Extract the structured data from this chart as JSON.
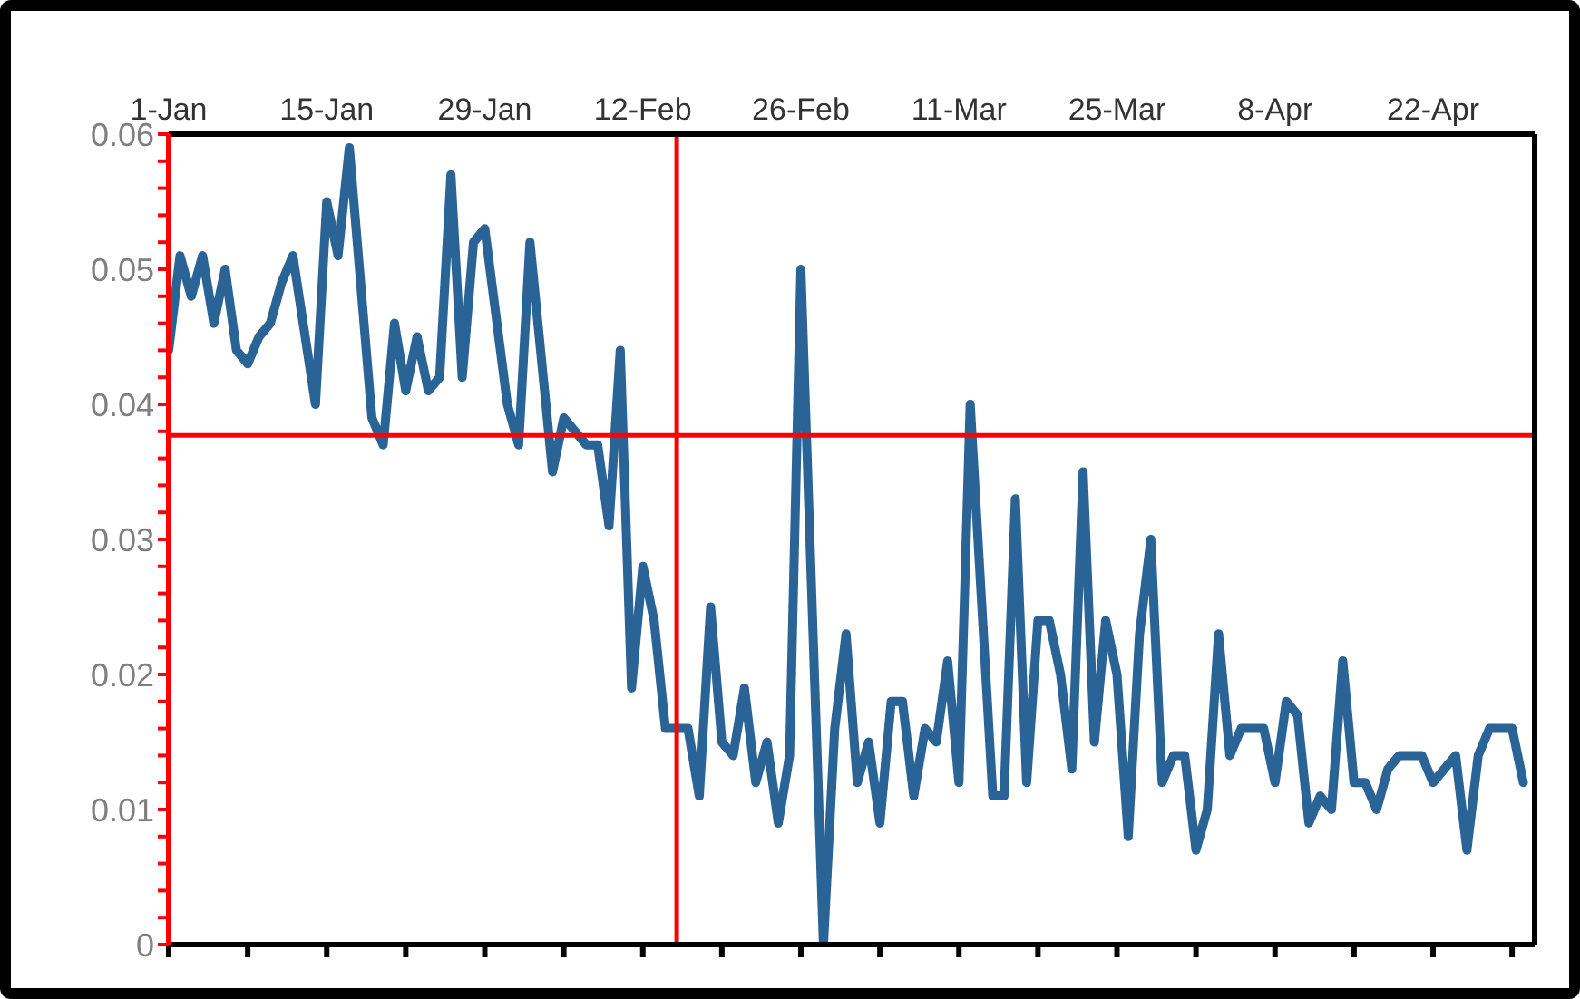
{
  "chart_data": {
    "type": "line",
    "x": [
      "--01-01",
      "--01-02",
      "--01-03",
      "--01-04",
      "--01-05",
      "--01-06",
      "--01-07",
      "--01-08",
      "--01-09",
      "--01-10",
      "--01-11",
      "--01-12",
      "--01-14",
      "--01-15",
      "--01-16",
      "--01-17",
      "--01-19",
      "--01-20",
      "--01-21",
      "--01-22",
      "--01-23",
      "--01-24",
      "--01-25",
      "--01-26",
      "--01-27",
      "--01-28",
      "--01-29",
      "--01-31",
      "--02-01",
      "--02-02",
      "--02-04",
      "--02-05",
      "--02-07",
      "--02-08",
      "--02-09",
      "--02-10",
      "--02-11",
      "--02-12",
      "--02-13",
      "--02-14",
      "--02-15",
      "--02-16",
      "--02-17",
      "--02-18",
      "--02-19",
      "--02-20",
      "--02-21",
      "--02-22",
      "--02-23",
      "--02-24",
      "--02-25",
      "--02-26",
      "--02-28",
      "--02-29",
      "--03-01",
      "--03-02",
      "--03-03",
      "--03-04",
      "--03-05",
      "--03-06",
      "--03-07",
      "--03-08",
      "--03-09",
      "--03-10",
      "--03-11",
      "--03-12",
      "--03-14",
      "--03-15",
      "--03-16",
      "--03-17",
      "--03-18",
      "--03-19",
      "--03-20",
      "--03-21",
      "--03-22",
      "--03-23",
      "--03-24",
      "--03-25",
      "--03-26",
      "--03-27",
      "--03-28",
      "--03-29",
      "--03-30",
      "--03-31",
      "--04-01",
      "--04-02",
      "--04-03",
      "--04-04",
      "--04-05",
      "--04-06",
      "--04-07",
      "--04-08",
      "--04-09",
      "--04-10",
      "--04-11",
      "--04-12",
      "--04-13",
      "--04-14",
      "--04-15",
      "--04-16",
      "--04-17",
      "--04-18",
      "--04-19",
      "--04-20",
      "--04-21",
      "--04-22",
      "--04-23",
      "--04-24",
      "--04-25",
      "--04-26",
      "--04-27",
      "--04-28",
      "--04-29",
      "--04-30"
    ],
    "series": [
      {
        "color": "#2a6496",
        "values": [
          0.044,
          0.051,
          0.048,
          0.051,
          0.046,
          0.05,
          0.044,
          0.043,
          0.045,
          0.046,
          0.049,
          0.051,
          0.04,
          0.055,
          0.051,
          0.059,
          0.039,
          0.037,
          0.046,
          0.041,
          0.045,
          0.041,
          0.042,
          0.057,
          0.042,
          0.052,
          0.053,
          0.04,
          0.037,
          0.052,
          0.035,
          0.039,
          0.037,
          0.037,
          0.031,
          0.044,
          0.019,
          0.028,
          0.024,
          0.016,
          0.016,
          0.016,
          0.011,
          0.025,
          0.015,
          0.014,
          0.019,
          0.012,
          0.015,
          0.009,
          0.014,
          0.05,
          0,
          0.016,
          0.023,
          0.012,
          0.015,
          0.009,
          0.018,
          0.018,
          0.011,
          0.016,
          0.015,
          0.021,
          0.012,
          0.04,
          0.011,
          0.011,
          0.033,
          0.012,
          0.024,
          0.024,
          0.02,
          0.013,
          0.035,
          0.015,
          0.024,
          0.02,
          0.008,
          0.023,
          0.03,
          0.012,
          0.014,
          0.014,
          0.007,
          0.01,
          0.023,
          0.014,
          0.016,
          0.016,
          0.016,
          0.012,
          0.018,
          0.017,
          0.009,
          0.011,
          0.01,
          0.021,
          0.012,
          0.012,
          0.01,
          0.013,
          0.014,
          0.014,
          0.014,
          0.012,
          0.013,
          0.014,
          0.007,
          0.014,
          0.016,
          0.016,
          0.016,
          0.012
        ]
      }
    ],
    "xlim": [
      "--01-01",
      "--05-01"
    ],
    "xticks": [
      {
        "value": "--01-01",
        "label": "1-Jan"
      },
      {
        "value": "--01-08",
        "label": null
      },
      {
        "value": "--01-15",
        "label": "15-Jan"
      },
      {
        "value": "--01-22",
        "label": null
      },
      {
        "value": "--01-29",
        "label": "29-Jan"
      },
      {
        "value": "--02-05",
        "label": null
      },
      {
        "value": "--02-12",
        "label": "12-Feb"
      },
      {
        "value": "--02-19",
        "label": null
      },
      {
        "value": "--02-26",
        "label": "26-Feb"
      },
      {
        "value": "--03-04",
        "label": null
      },
      {
        "value": "--03-11",
        "label": "11-Mar"
      },
      {
        "value": "--03-18",
        "label": null
      },
      {
        "value": "--03-25",
        "label": "25-Mar"
      },
      {
        "value": "--04-01",
        "label": null
      },
      {
        "value": "--04-08",
        "label": "8-Apr"
      },
      {
        "value": "--04-15",
        "label": null
      },
      {
        "value": "--04-22",
        "label": "22-Apr"
      },
      {
        "value": "--04-29",
        "label": null
      }
    ],
    "ylim": [
      0,
      0.06
    ],
    "yticks": [
      0,
      {
        "value": 0.002,
        "label": null
      },
      {
        "value": 0.004,
        "label": null
      },
      {
        "value": 0.006,
        "label": null
      },
      {
        "value": 0.008,
        "label": null
      },
      0.01,
      {
        "value": 0.012,
        "label": null
      },
      {
        "value": 0.014,
        "label": null
      },
      {
        "value": 0.016,
        "label": null
      },
      {
        "value": 0.018,
        "label": null
      },
      0.02,
      {
        "value": 0.022,
        "label": null
      },
      {
        "value": 0.024,
        "label": null
      },
      {
        "value": 0.026,
        "label": null
      },
      {
        "value": 0.028,
        "label": null
      },
      0.03,
      {
        "value": 0.032,
        "label": null
      },
      {
        "value": 0.034,
        "label": null
      },
      {
        "value": 0.036,
        "label": null
      },
      {
        "value": 0.038,
        "label": null
      },
      0.04,
      {
        "value": 0.042,
        "label": null
      },
      {
        "value": 0.044,
        "label": null
      },
      {
        "value": 0.046,
        "label": null
      },
      {
        "value": 0.048,
        "label": null
      },
      0.05,
      {
        "value": 0.052,
        "label": null
      },
      {
        "value": 0.054,
        "label": null
      },
      {
        "value": 0.056,
        "label": null
      },
      {
        "value": 0.058,
        "label": null
      },
      0.06
    ],
    "ref_lines": [
      {
        "axis": "y",
        "value": 0.0377,
        "color": "#ff0000"
      },
      {
        "axis": "x",
        "value": "--02-15",
        "color": "#ff0000"
      }
    ],
    "marker": "none",
    "line_style": "solid",
    "grid": false,
    "legend": false
  }
}
